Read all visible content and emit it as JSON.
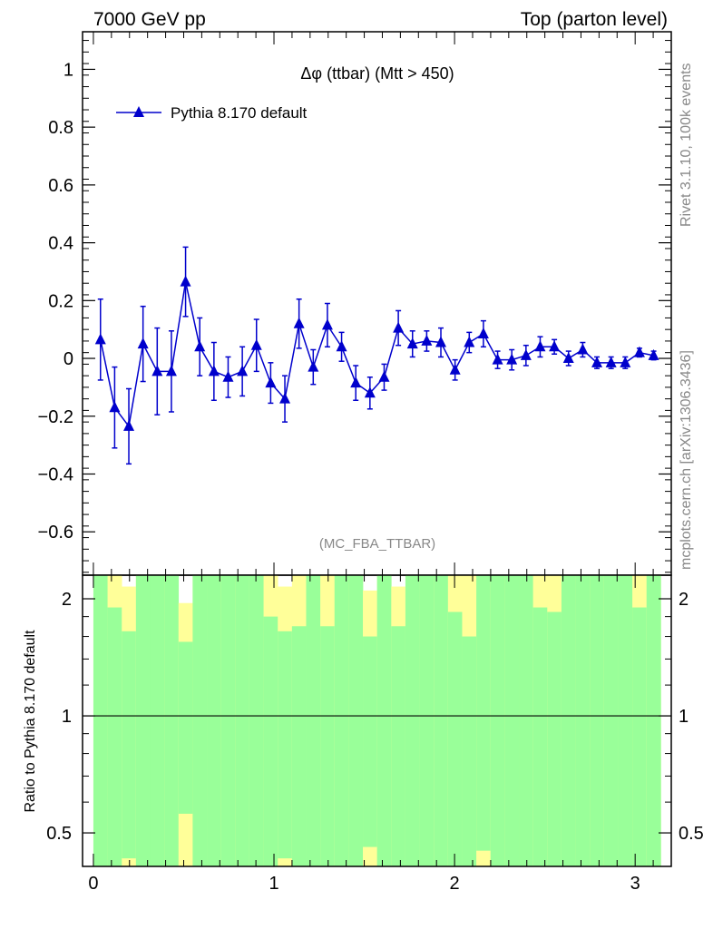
{
  "header": {
    "left": "7000 GeV pp",
    "right": "Top (parton level)"
  },
  "side_text": {
    "rivet": "Rivet 3.1.10,  100k events",
    "site": "mcplots.cern.ch [arXiv:1306.3436]"
  },
  "colors": {
    "series": "#0000cc",
    "band_inner": "#99ff99",
    "band_outer": "#ffff99",
    "frame": "#000000"
  },
  "chart_data": [
    {
      "type": "line",
      "title": "Δφ (ttbar) (Mtt > 450)",
      "analysis": "(MC_FBA_TTBAR)",
      "xlabel": "",
      "ylabel": "",
      "xlim": [
        -0.06,
        3.2
      ],
      "ylim": [
        -0.75,
        1.13
      ],
      "yticks": [
        -0.6,
        -0.4,
        -0.2,
        0,
        0.2,
        0.4,
        0.6,
        0.8,
        1
      ],
      "ytick_labels": [
        "−0.6",
        "−0.4",
        "−0.2",
        "0",
        "0.2",
        "0.4",
        "0.6",
        "0.8",
        "1"
      ],
      "legend_position": "top-left",
      "series": [
        {
          "name": "Pythia 8.170 default",
          "marker": "triangle",
          "x": [
            0.0393,
            0.1178,
            0.1963,
            0.2749,
            0.3534,
            0.432,
            0.5105,
            0.589,
            0.6676,
            0.7461,
            0.8247,
            0.9032,
            0.9817,
            1.0603,
            1.1388,
            1.2174,
            1.2959,
            1.3744,
            1.453,
            1.5315,
            1.6101,
            1.6886,
            1.7671,
            1.8457,
            1.9242,
            2.0028,
            2.0813,
            2.1598,
            2.2384,
            2.3169,
            2.3955,
            2.474,
            2.5525,
            2.6311,
            2.7096,
            2.7882,
            2.8667,
            2.9452,
            3.0238,
            3.1023
          ],
          "y": [
            0.065,
            -0.17,
            -0.235,
            0.05,
            -0.045,
            -0.045,
            0.265,
            0.04,
            -0.045,
            -0.065,
            -0.045,
            0.045,
            -0.085,
            -0.14,
            0.12,
            -0.03,
            0.115,
            0.04,
            -0.085,
            -0.12,
            -0.065,
            0.105,
            0.05,
            0.06,
            0.055,
            -0.04,
            0.055,
            0.085,
            -0.005,
            -0.005,
            0.01,
            0.04,
            0.04,
            0.0,
            0.03,
            -0.015,
            -0.015,
            -0.015,
            0.02,
            0.01
          ],
          "yerr": [
            0.14,
            0.14,
            0.13,
            0.13,
            0.15,
            0.14,
            0.12,
            0.1,
            0.1,
            0.07,
            0.085,
            0.09,
            0.07,
            0.08,
            0.085,
            0.06,
            0.075,
            0.05,
            0.06,
            0.055,
            0.045,
            0.06,
            0.045,
            0.035,
            0.05,
            0.035,
            0.035,
            0.045,
            0.03,
            0.035,
            0.035,
            0.035,
            0.025,
            0.025,
            0.025,
            0.02,
            0.02,
            0.02,
            0.015,
            0.015
          ]
        }
      ]
    },
    {
      "type": "area",
      "title": "",
      "xlabel": "",
      "ylabel": "Ratio to Pythia 8.170 default",
      "xlim": [
        -0.06,
        3.2
      ],
      "xticks": [
        0,
        1,
        2,
        3
      ],
      "xtick_labels": [
        "0",
        "1",
        "2",
        "3"
      ],
      "ylim": [
        0.41,
        2.3
      ],
      "y_scale": "log",
      "yticks": [
        0.5,
        1,
        2
      ],
      "ytick_labels": [
        "0.5",
        "1",
        "2"
      ],
      "reference_line": 1,
      "band_edges": [
        0.0,
        0.0785,
        0.1571,
        0.2356,
        0.3142,
        0.3927,
        0.4712,
        0.5498,
        0.6283,
        0.7069,
        0.7854,
        0.8639,
        0.9425,
        1.021,
        1.0996,
        1.1781,
        1.2566,
        1.3352,
        1.4137,
        1.4923,
        1.5708,
        1.6493,
        1.7279,
        1.8064,
        1.885,
        1.9635,
        2.042,
        2.1206,
        2.1991,
        2.2777,
        2.3562,
        2.4347,
        2.5133,
        2.5918,
        2.6704,
        2.7489,
        2.8274,
        2.906,
        2.9845,
        3.0631,
        3.1416
      ],
      "band_inner_upper": [
        2.3,
        1.9,
        1.65,
        2.3,
        2.3,
        2.3,
        1.55,
        2.3,
        2.3,
        2.3,
        2.3,
        2.3,
        1.8,
        1.65,
        1.7,
        2.3,
        1.7,
        2.3,
        2.3,
        1.6,
        2.3,
        1.7,
        2.3,
        2.3,
        2.3,
        1.85,
        1.6,
        2.3,
        2.3,
        2.3,
        2.3,
        1.9,
        1.85,
        2.3,
        2.3,
        2.3,
        2.3,
        2.3,
        1.9,
        2.3
      ],
      "band_outer_upper": [
        2.3,
        2.3,
        2.15,
        2.3,
        2.3,
        2.3,
        1.95,
        2.3,
        2.3,
        2.3,
        2.25,
        2.3,
        2.3,
        2.15,
        2.3,
        2.3,
        2.3,
        2.3,
        2.3,
        2.1,
        2.3,
        2.15,
        2.3,
        2.3,
        2.3,
        2.3,
        2.3,
        2.1,
        2.3,
        2.3,
        2.3,
        2.3,
        2.3,
        2.3,
        2.3,
        2.3,
        2.3,
        2.3,
        2.3,
        2.3
      ],
      "band_inner_lower": [
        0.41,
        0.41,
        0.41,
        0.41,
        0.41,
        0.41,
        0.41,
        0.41,
        0.41,
        0.41,
        0.41,
        0.41,
        0.41,
        0.41,
        0.41,
        0.41,
        0.41,
        0.41,
        0.41,
        0.41,
        0.41,
        0.41,
        0.41,
        0.41,
        0.41,
        0.41,
        0.41,
        0.41,
        0.41,
        0.41,
        0.41,
        0.41,
        0.41,
        0.41,
        0.41,
        0.41,
        0.41,
        0.41,
        0.41,
        0.41
      ],
      "band_outer_lower": [
        0.41,
        0.41,
        0.41,
        0.41,
        0.41,
        0.41,
        0.41,
        0.41,
        0.41,
        0.41,
        0.41,
        0.41,
        0.41,
        0.41,
        0.41,
        0.41,
        0.41,
        0.41,
        0.41,
        0.41,
        0.41,
        0.41,
        0.41,
        0.41,
        0.41,
        0.41,
        0.41,
        0.41,
        0.41,
        0.41,
        0.41,
        0.41,
        0.41,
        0.41,
        0.41,
        0.41,
        0.41,
        0.41,
        0.41,
        0.41
      ],
      "band_outer_lower_yellow": [
        0.41,
        0.41,
        0.43,
        0.41,
        0.41,
        0.41,
        0.56,
        0.41,
        0.41,
        0.41,
        0.41,
        0.41,
        0.41,
        0.43,
        0.41,
        0.41,
        0.41,
        0.41,
        0.41,
        0.46,
        0.41,
        0.41,
        0.41,
        0.41,
        0.41,
        0.41,
        0.41,
        0.45,
        0.41,
        0.41,
        0.41,
        0.41,
        0.41,
        0.41,
        0.41,
        0.41,
        0.41,
        0.41,
        0.41,
        0.41
      ]
    }
  ]
}
